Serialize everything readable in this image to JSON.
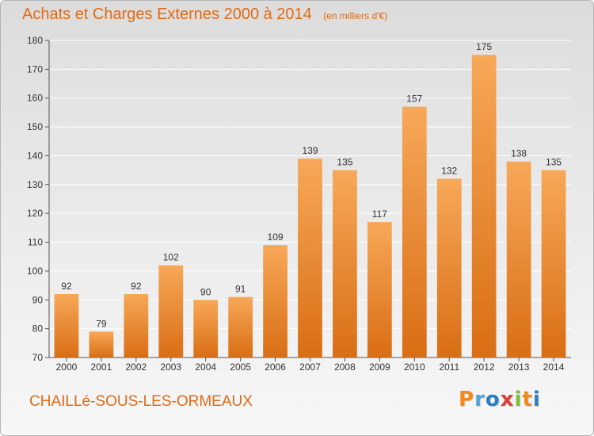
{
  "header": {
    "title": "Achats et Charges Externes 2000 à 2014",
    "subtitle": "(en milliers d'€)"
  },
  "footer": {
    "commune": "CHAILLé-SOUS-LES-ORMEAUX",
    "logo_letters": [
      "P",
      "r",
      "o",
      "x",
      "i",
      "t",
      "i"
    ],
    "logo_colors": [
      "#f08a1c",
      "#5aa0d8",
      "#2b7fc4",
      "#e23b3b",
      "#7cbf3a",
      "#f08a1c",
      "#2b7fc4"
    ]
  },
  "colors": {
    "bar_top": "#f7a858",
    "bar_bottom": "#d96e14",
    "accent": "#e06a14"
  },
  "chart_data": {
    "type": "bar",
    "categories": [
      "2000",
      "2001",
      "2002",
      "2003",
      "2004",
      "2005",
      "2006",
      "2007",
      "2008",
      "2009",
      "2010",
      "2011",
      "2012",
      "2013",
      "2014"
    ],
    "values": [
      92,
      79,
      92,
      102,
      90,
      91,
      109,
      139,
      135,
      117,
      157,
      132,
      175,
      138,
      135
    ],
    "title": "Achats et Charges Externes 2000 à 2014",
    "ylim": [
      70,
      180
    ],
    "yticks": [
      70,
      80,
      90,
      100,
      110,
      120,
      130,
      140,
      150,
      160,
      170,
      180
    ],
    "grid": true,
    "data_labels": true
  }
}
